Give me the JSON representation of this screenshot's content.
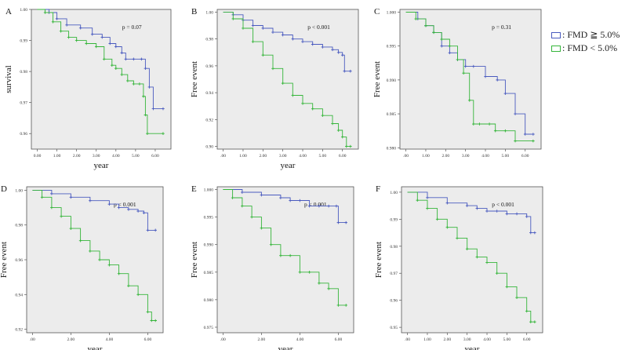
{
  "legend": {
    "items": [
      {
        "label": ": FMD ≧ 5.0%",
        "color": "#4a5bbf"
      },
      {
        "label": ": FMD < 5.0%",
        "color": "#35b53a"
      }
    ]
  },
  "chart_data": [
    {
      "type": "line",
      "panel": "A",
      "title": "",
      "xlabel": "year",
      "ylabel": "survival",
      "pvalue": "p = 0.07",
      "xlim": [
        -0.3,
        6.8
      ],
      "ylim": [
        0.955,
        1.0
      ],
      "xticks": [
        "0.00",
        "1.00",
        "2.00",
        "3.00",
        "4.00",
        "5.00",
        "6.00"
      ],
      "yticks": [
        "1.00",
        "0.99",
        "0.98",
        "0.97",
        "0.96"
      ],
      "series": [
        {
          "name": "FMD ≥ 5.0%",
          "x": [
            0.0,
            0.6,
            1.0,
            1.5,
            2.2,
            2.8,
            3.3,
            3.7,
            4.0,
            4.3,
            4.5,
            4.9,
            5.3,
            5.5,
            5.7,
            5.9,
            6.4
          ],
          "y": [
            1.0,
            0.999,
            0.997,
            0.995,
            0.994,
            0.992,
            0.991,
            0.989,
            0.988,
            0.986,
            0.984,
            0.984,
            0.984,
            0.981,
            0.975,
            0.968,
            0.968
          ]
        },
        {
          "name": "FMD < 5.0%",
          "x": [
            0.0,
            0.4,
            0.8,
            1.2,
            1.6,
            2.0,
            2.5,
            3.0,
            3.4,
            3.8,
            4.0,
            4.3,
            4.6,
            4.9,
            5.2,
            5.4,
            5.5,
            5.6,
            6.4
          ],
          "y": [
            1.0,
            0.999,
            0.996,
            0.993,
            0.991,
            0.99,
            0.989,
            0.988,
            0.984,
            0.982,
            0.981,
            0.979,
            0.977,
            0.976,
            0.976,
            0.972,
            0.966,
            0.96,
            0.96
          ]
        }
      ]
    },
    {
      "type": "line",
      "panel": "B",
      "title": "",
      "xlabel": "year",
      "ylabel": "Free event",
      "pvalue": "p < 0.001",
      "xlim": [
        -0.3,
        6.8
      ],
      "ylim": [
        0.898,
        1.002
      ],
      "xticks": [
        ".00",
        "1.00",
        "2.00",
        "3.00",
        "4.00",
        "5.00",
        "6.00"
      ],
      "yticks": [
        "1.00",
        "0.98",
        "0.96",
        "0.94",
        "0.92",
        "0.90"
      ],
      "series": [
        {
          "name": "FMD ≥ 5.0%",
          "x": [
            0.0,
            0.5,
            1.0,
            1.5,
            2.0,
            2.5,
            3.0,
            3.5,
            4.0,
            4.5,
            5.0,
            5.5,
            5.8,
            6.0,
            6.1,
            6.4
          ],
          "y": [
            1.0,
            0.998,
            0.994,
            0.99,
            0.988,
            0.985,
            0.983,
            0.98,
            0.978,
            0.976,
            0.974,
            0.972,
            0.97,
            0.968,
            0.956,
            0.956
          ]
        },
        {
          "name": "FMD < 5.0%",
          "x": [
            0.0,
            0.5,
            1.0,
            1.5,
            2.0,
            2.5,
            3.0,
            3.5,
            4.0,
            4.5,
            5.0,
            5.5,
            5.8,
            6.0,
            6.2,
            6.4
          ],
          "y": [
            1.0,
            0.995,
            0.988,
            0.978,
            0.968,
            0.958,
            0.947,
            0.938,
            0.932,
            0.928,
            0.923,
            0.917,
            0.912,
            0.907,
            0.9,
            0.9
          ]
        }
      ]
    },
    {
      "type": "line",
      "panel": "C",
      "title": "",
      "xlabel": "",
      "ylabel": "Free event",
      "pvalue": "p = 0.31",
      "xlim": [
        -0.3,
        6.8
      ],
      "ylim": [
        0.9798,
        1.0004
      ],
      "xticks": [
        ".00",
        "1.00",
        "2.00",
        "3.00",
        "4.00",
        "5.00",
        "6.00"
      ],
      "yticks": [
        "1.000",
        "0.995",
        "0.990",
        "0.985",
        "0.980"
      ],
      "series": [
        {
          "name": "FMD ≥ 5.0%",
          "x": [
            0.0,
            0.6,
            1.0,
            1.4,
            1.8,
            2.2,
            2.6,
            3.0,
            3.4,
            4.0,
            4.6,
            5.0,
            5.5,
            6.0,
            6.4
          ],
          "y": [
            1.0,
            0.999,
            0.998,
            0.997,
            0.995,
            0.994,
            0.993,
            0.992,
            0.992,
            0.9905,
            0.99,
            0.988,
            0.985,
            0.982,
            0.982
          ]
        },
        {
          "name": "FMD < 5.0%",
          "x": [
            0.0,
            0.5,
            1.0,
            1.4,
            1.8,
            2.2,
            2.6,
            2.9,
            3.2,
            3.4,
            3.7,
            4.2,
            4.5,
            5.0,
            5.5,
            6.4
          ],
          "y": [
            1.0,
            0.999,
            0.998,
            0.997,
            0.996,
            0.995,
            0.993,
            0.991,
            0.987,
            0.9835,
            0.9835,
            0.9835,
            0.9825,
            0.9825,
            0.981,
            0.981
          ]
        }
      ]
    },
    {
      "type": "line",
      "panel": "D",
      "title": "",
      "xlabel": "year",
      "ylabel": "Free event",
      "pvalue": "p < 0.001",
      "xlim": [
        -0.3,
        6.8
      ],
      "ylim": [
        0.918,
        1.002
      ],
      "xticks": [
        ".00",
        "2.00",
        "4.00",
        "6.00"
      ],
      "yticks": [
        "1.00",
        "0.98",
        "0.96",
        "0.94",
        "0.92"
      ],
      "series": [
        {
          "name": "FMD ≥ 5.0%",
          "x": [
            0.0,
            1.0,
            2.0,
            3.0,
            4.0,
            4.5,
            5.0,
            5.5,
            5.8,
            6.0,
            6.4
          ],
          "y": [
            1.0,
            0.998,
            0.996,
            0.994,
            0.992,
            0.99,
            0.989,
            0.988,
            0.987,
            0.977,
            0.977
          ]
        },
        {
          "name": "FMD < 5.0%",
          "x": [
            0.0,
            0.5,
            1.0,
            1.5,
            2.0,
            2.5,
            3.0,
            3.5,
            4.0,
            4.5,
            5.0,
            5.5,
            6.0,
            6.2,
            6.4
          ],
          "y": [
            1.0,
            0.996,
            0.99,
            0.985,
            0.978,
            0.971,
            0.965,
            0.96,
            0.957,
            0.952,
            0.945,
            0.94,
            0.93,
            0.925,
            0.925
          ]
        }
      ]
    },
    {
      "type": "line",
      "panel": "E",
      "title": "",
      "xlabel": "year",
      "ylabel": "Free event",
      "pvalue": "p < 0.001",
      "xlim": [
        -0.3,
        6.8
      ],
      "ylim": [
        0.974,
        1.0005
      ],
      "xticks": [
        ".00",
        "2.00",
        "4.00",
        "6.00"
      ],
      "yticks": [
        "1.000",
        "0.995",
        "0.990",
        "0.985",
        "0.980",
        "0.975"
      ],
      "series": [
        {
          "name": "FMD ≥ 5.0%",
          "x": [
            0.0,
            1.0,
            2.0,
            3.0,
            3.5,
            4.0,
            4.5,
            5.0,
            5.5,
            5.9,
            6.0,
            6.4
          ],
          "y": [
            1.0,
            0.9995,
            0.999,
            0.9985,
            0.998,
            0.998,
            0.997,
            0.997,
            0.997,
            0.997,
            0.994,
            0.994
          ]
        },
        {
          "name": "FMD < 5.0%",
          "x": [
            0.0,
            0.5,
            1.0,
            1.5,
            2.0,
            2.5,
            3.0,
            3.5,
            4.0,
            4.5,
            5.0,
            5.5,
            6.0,
            6.4
          ],
          "y": [
            1.0,
            0.9985,
            0.997,
            0.995,
            0.993,
            0.99,
            0.988,
            0.988,
            0.985,
            0.985,
            0.983,
            0.982,
            0.979,
            0.979
          ]
        }
      ]
    },
    {
      "type": "line",
      "panel": "F",
      "title": "",
      "xlabel": "year",
      "ylabel": "Free event",
      "pvalue": "p < 0.001",
      "xlim": [
        -0.3,
        6.8
      ],
      "ylim": [
        0.948,
        1.002
      ],
      "xticks": [
        ".00",
        "1.00",
        "2.00",
        "3.00",
        "4.00",
        "5.00",
        "6.00"
      ],
      "yticks": [
        "1.00",
        "0.99",
        "0.98",
        "0.97",
        "0.96",
        "0.95"
      ],
      "series": [
        {
          "name": "FMD ≥ 5.0%",
          "x": [
            0.0,
            1.0,
            2.0,
            3.0,
            3.5,
            4.0,
            4.5,
            5.0,
            5.5,
            6.0,
            6.2,
            6.4
          ],
          "y": [
            1.0,
            0.998,
            0.996,
            0.995,
            0.994,
            0.993,
            0.993,
            0.992,
            0.992,
            0.991,
            0.985,
            0.985
          ]
        },
        {
          "name": "FMD < 5.0%",
          "x": [
            0.0,
            0.5,
            1.0,
            1.5,
            2.0,
            2.5,
            3.0,
            3.5,
            4.0,
            4.5,
            5.0,
            5.5,
            6.0,
            6.2,
            6.4
          ],
          "y": [
            1.0,
            0.997,
            0.994,
            0.99,
            0.987,
            0.983,
            0.979,
            0.976,
            0.974,
            0.97,
            0.965,
            0.961,
            0.956,
            0.952,
            0.952
          ]
        }
      ]
    }
  ]
}
